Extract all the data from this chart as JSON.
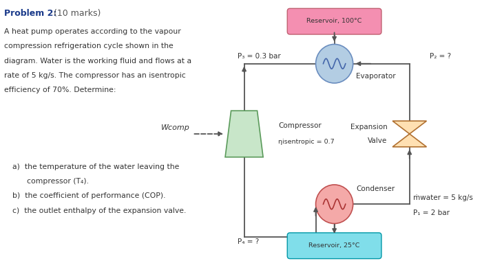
{
  "title": "Problem 2:",
  "title_suffix": " (10 marks)",
  "problem_text": [
    "A heat pump operates according to the vapour",
    "compression refrigeration cycle shown in the",
    "diagram. Water is the working fluid and flows at a",
    "rate of 5 kg/s. The compressor has an isentropic",
    "efficiency of 70%. Determine:"
  ],
  "item_a1": "a)  the temperature of the water leaving the",
  "item_a2": "      compressor (T₄).",
  "item_b": "b)  the coefficient of performance (COP).",
  "item_c": "c)  the outlet enthalpy of the expansion valve.",
  "reservoir_top_label": "Reservoir, 100°C",
  "reservoir_bot_label": "Reservoir, 25°C",
  "reservoir_top_color": "#f48fb1",
  "reservoir_bot_color": "#80deea",
  "evaporator_label": "Evaporator",
  "evaporator_color": "#b3cde3",
  "condenser_label": "Condenser",
  "condenser_color": "#f4a9a8",
  "compressor_label": "Compressor",
  "compressor_sublabel": "ηisentropic = 0.7",
  "compressor_color": "#c8e6c9",
  "expansion_label_1": "Expansion",
  "expansion_label_2": "Valve",
  "expansion_color": "#ffe0b2",
  "w_comp_label": "Ẇcomp",
  "p3_label": "P₃ = 0.3 bar",
  "p2_label": "P₂ = ?",
  "p4_label": "P₄ = ?",
  "p1_line1": "ṁwater = 5 kg/s",
  "p1_line2": "P₁ = 2 bar",
  "bg_color": "#ffffff",
  "text_color": "#333333",
  "line_color": "#555555",
  "arrow_color": "#555555"
}
